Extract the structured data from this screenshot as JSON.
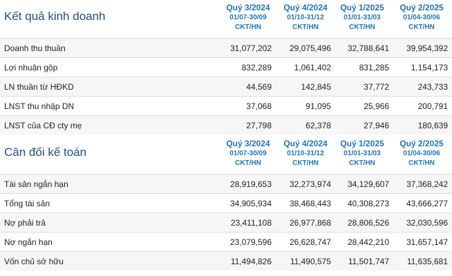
{
  "income": {
    "title": "Kết quả kinh doanh",
    "columns": [
      {
        "quarter": "Quý 3/2024",
        "range": "01/07-30/09",
        "type": "CKT/HN"
      },
      {
        "quarter": "Quý 4/2024",
        "range": "01/10-31/12",
        "type": "CKT/HN"
      },
      {
        "quarter": "Quý 1/2025",
        "range": "01/01-31/03",
        "type": "CKT/HN"
      },
      {
        "quarter": "Quý 2/2025",
        "range": "01/04-30/06",
        "type": "CKT/HN"
      }
    ],
    "rows": [
      {
        "label": "Doanh thu thuần",
        "values": [
          "31,077,202",
          "29,075,496",
          "32,788,641",
          "39,954,392"
        ]
      },
      {
        "label": "Lợi nhuận gộp",
        "values": [
          "832,289",
          "1,061,402",
          "831,285",
          "1,154,173"
        ]
      },
      {
        "label": "LN thuần từ HĐKD",
        "values": [
          "44,569",
          "142,845",
          "37,772",
          "243,733"
        ]
      },
      {
        "label": "LNST thu nhập DN",
        "values": [
          "37,068",
          "91,095",
          "25,966",
          "200,791"
        ]
      },
      {
        "label": "LNST của CĐ cty mẹ",
        "values": [
          "27,798",
          "62,378",
          "27,946",
          "180,639"
        ]
      }
    ]
  },
  "balance": {
    "title": "Cân đối kế toán",
    "columns": [
      {
        "quarter": "Quý 3/2024",
        "range": "01/07-30/09",
        "type": "CKT/HN"
      },
      {
        "quarter": "Quý 4/2024",
        "range": "01/10-31/12",
        "type": "CKT/HN"
      },
      {
        "quarter": "Quý 1/2025",
        "range": "01/01-31/03",
        "type": "CKT/HN"
      },
      {
        "quarter": "Quý 2/2025",
        "range": "01/04-30/06",
        "type": "CKT/HN"
      }
    ],
    "rows": [
      {
        "label": "Tài sản ngắn hạn",
        "values": [
          "28,919,653",
          "32,273,974",
          "34,129,607",
          "37,368,242"
        ]
      },
      {
        "label": "Tổng tài sản",
        "values": [
          "34,905,934",
          "38,468,443",
          "40,308,273",
          "43,666,277"
        ]
      },
      {
        "label": "Nợ phải trả",
        "values": [
          "23,411,108",
          "26,977,868",
          "28,806,526",
          "32,030,596"
        ]
      },
      {
        "label": "Nợ ngắn hạn",
        "values": [
          "23,079,596",
          "26,628,747",
          "28,442,210",
          "31,657,147"
        ]
      },
      {
        "label": "Vốn chủ sở hữu",
        "values": [
          "11,494,826",
          "11,490,575",
          "11,501,747",
          "11,635,681"
        ]
      }
    ]
  }
}
